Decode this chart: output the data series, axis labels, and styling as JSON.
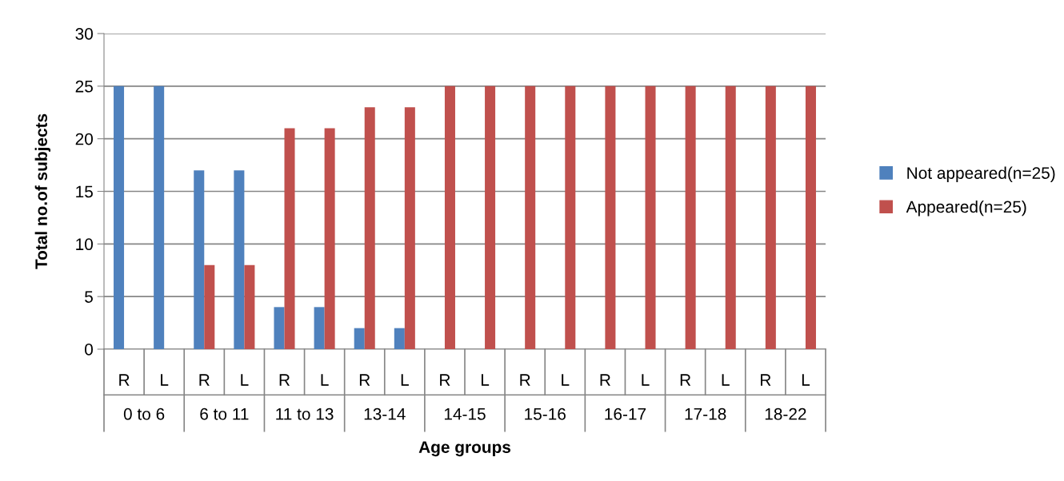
{
  "chart_data": {
    "type": "bar",
    "xlabel": "Age groups",
    "ylabel": "Total no.of subjects",
    "categories": [
      "R",
      "L",
      "R",
      "L",
      "R",
      "L",
      "R",
      "L",
      "R",
      "L",
      "R",
      "L",
      "R",
      "L",
      "R",
      "L",
      "R",
      "L"
    ],
    "annotations": [
      "0 to 6",
      "6 to 11",
      "11 to 13",
      "13-14",
      "14-15",
      "15-16",
      "16-17",
      "17-18",
      "18-22"
    ],
    "series": [
      {
        "name": "Not appeared(n=25)",
        "color": "#4f81bd",
        "values": [
          25,
          25,
          17,
          17,
          4,
          4,
          2,
          2,
          0,
          0,
          0,
          0,
          0,
          0,
          0,
          0,
          0,
          0
        ]
      },
      {
        "name": "Appeared(n=25)",
        "color": "#c0504d",
        "values": [
          0,
          0,
          8,
          8,
          21,
          21,
          23,
          23,
          25,
          25,
          25,
          25,
          25,
          25,
          25,
          25,
          25,
          25
        ]
      }
    ],
    "ylim": [
      0,
      30
    ],
    "yticks": [
      0,
      5,
      10,
      15,
      20,
      25,
      30
    ],
    "grid": "y",
    "legend": "right"
  }
}
